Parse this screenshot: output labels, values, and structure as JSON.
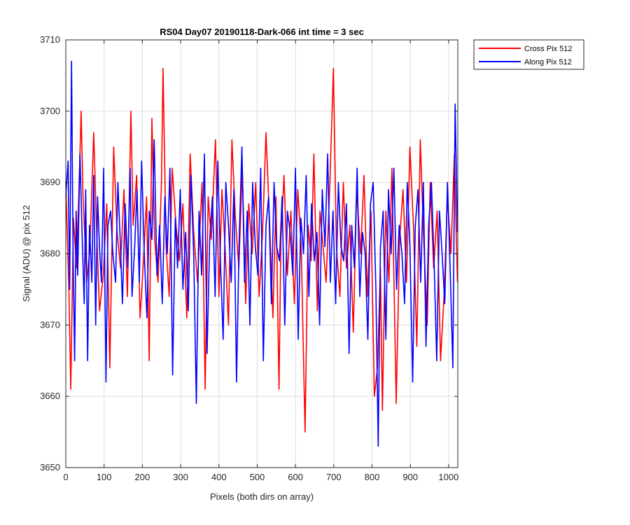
{
  "chart_data": {
    "type": "line",
    "title": "RS04 Day07 20190118-Dark-066 int time = 3 sec",
    "xlabel": "Pixels (both dirs on array)",
    "ylabel": "Signal (ADU) @ pix 512",
    "xlim": [
      0,
      1024
    ],
    "ylim": [
      3650,
      3710
    ],
    "xticks": [
      0,
      100,
      200,
      300,
      400,
      500,
      600,
      700,
      800,
      900,
      1000
    ],
    "yticks": [
      3650,
      3660,
      3670,
      3680,
      3690,
      3700,
      3710
    ],
    "grid": true,
    "legend_position": "outside-top-right",
    "series": [
      {
        "name": "Cross Pix 512",
        "color": "#ff0000",
        "x": [
          0,
          8,
          13,
          20,
          28,
          36,
          40,
          45,
          55,
          63,
          73,
          80,
          88,
          98,
          107,
          115,
          125,
          134,
          143,
          152,
          161,
          170,
          176,
          185,
          194,
          203,
          211,
          218,
          225,
          232,
          241,
          250,
          254,
          262,
          270,
          278,
          288,
          297,
          306,
          316,
          325,
          334,
          344,
          356,
          364,
          372,
          380,
          391,
          400,
          408,
          416,
          425,
          434,
          443,
          452,
          461,
          470,
          478,
          487,
          496,
          505,
          514,
          523,
          532,
          541,
          549,
          557,
          562,
          570,
          579,
          588,
          597,
          606,
          615,
          625,
          633,
          641,
          648,
          657,
          664,
          672,
          680,
          690,
          699,
          707,
          716,
          725,
          733,
          742,
          751,
          760,
          770,
          779,
          788,
          797,
          806,
          814,
          822,
          827,
          836,
          844,
          852,
          863,
          872,
          881,
          890,
          899,
          908,
          917,
          926,
          935,
          944,
          952,
          961,
          970,
          979,
          988,
          997,
          1006,
          1015,
          1023
        ],
        "values": [
          3690,
          3675,
          3661,
          3685,
          3678,
          3692,
          3700,
          3688,
          3676,
          3681,
          3697,
          3684,
          3672,
          3677,
          3687,
          3664,
          3695,
          3683,
          3678,
          3689,
          3674,
          3700,
          3684,
          3691,
          3671,
          3679,
          3688,
          3665,
          3699,
          3682,
          3676,
          3690,
          3706,
          3681,
          3674,
          3692,
          3684,
          3679,
          3687,
          3671,
          3694,
          3683,
          3676,
          3690,
          3661,
          3688,
          3682,
          3696,
          3674,
          3689,
          3681,
          3670,
          3696,
          3685,
          3678,
          3692,
          3673,
          3687,
          3680,
          3690,
          3674,
          3683,
          3697,
          3685,
          3671,
          3688,
          3661,
          3682,
          3691,
          3677,
          3686,
          3673,
          3689,
          3681,
          3655,
          3684,
          3679,
          3694,
          3672,
          3686,
          3681,
          3676,
          3690,
          3706,
          3681,
          3674,
          3690,
          3678,
          3684,
          3669,
          3689,
          3680,
          3691,
          3674,
          3686,
          3660,
          3664,
          3678,
          3658,
          3686,
          3676,
          3692,
          3659,
          3682,
          3689,
          3676,
          3695,
          3684,
          3667,
          3696,
          3682,
          3670,
          3690,
          3678,
          3686,
          3665,
          3674,
          3688,
          3680,
          3694,
          3676
        ]
      },
      {
        "name": "Along Pix 512",
        "color": "#0000ff",
        "x": [
          0,
          6,
          10,
          15,
          19,
          23,
          27,
          31,
          37,
          43,
          48,
          52,
          57,
          62,
          68,
          73,
          78,
          83,
          88,
          93,
          99,
          105,
          110,
          117,
          123,
          130,
          136,
          142,
          148,
          155,
          162,
          168,
          173,
          180,
          186,
          192,
          198,
          205,
          212,
          218,
          225,
          231,
          238,
          245,
          252,
          259,
          265,
          272,
          279,
          286,
          292,
          299,
          306,
          313,
          320,
          327,
          334,
          341,
          348,
          355,
          362,
          369,
          376,
          383,
          390,
          397,
          404,
          411,
          418,
          425,
          432,
          439,
          446,
          453,
          460,
          467,
          474,
          481,
          488,
          495,
          502,
          509,
          516,
          523,
          530,
          537,
          544,
          551,
          558,
          565,
          572,
          579,
          586,
          593,
          600,
          607,
          614,
          621,
          628,
          635,
          642,
          649,
          656,
          663,
          670,
          677,
          684,
          691,
          698,
          705,
          712,
          719,
          726,
          733,
          740,
          747,
          754,
          761,
          768,
          775,
          782,
          789,
          796,
          803,
          810,
          816,
          822,
          829,
          836,
          843,
          850,
          857,
          864,
          871,
          878,
          885,
          892,
          899,
          906,
          913,
          920,
          927,
          934,
          941,
          948,
          955,
          962,
          969,
          976,
          983,
          990,
          997,
          1004,
          1011,
          1017,
          1023
        ],
        "values": [
          3688,
          3693,
          3675,
          3707,
          3680,
          3665,
          3686,
          3677,
          3694,
          3682,
          3673,
          3689,
          3665,
          3684,
          3676,
          3691,
          3670,
          3688,
          3681,
          3676,
          3692,
          3662,
          3684,
          3686,
          3680,
          3676,
          3690,
          3682,
          3673,
          3687,
          3678,
          3692,
          3674,
          3681,
          3689,
          3676,
          3693,
          3680,
          3671,
          3686,
          3682,
          3696,
          3677,
          3684,
          3673,
          3688,
          3680,
          3692,
          3663,
          3685,
          3678,
          3689,
          3675,
          3683,
          3672,
          3691,
          3680,
          3659,
          3686,
          3677,
          3694,
          3666,
          3682,
          3688,
          3674,
          3693,
          3679,
          3668,
          3690,
          3684,
          3676,
          3689,
          3662,
          3682,
          3695,
          3676,
          3686,
          3670,
          3690,
          3681,
          3677,
          3692,
          3665,
          3684,
          3688,
          3673,
          3690,
          3681,
          3679,
          3688,
          3670,
          3686,
          3683,
          3677,
          3692,
          3668,
          3685,
          3680,
          3691,
          3674,
          3687,
          3679,
          3683,
          3670,
          3689,
          3681,
          3694,
          3676,
          3686,
          3673,
          3690,
          3681,
          3679,
          3687,
          3666,
          3684,
          3678,
          3692,
          3674,
          3683,
          3680,
          3668,
          3687,
          3690,
          3675,
          3653,
          3681,
          3686,
          3668,
          3689,
          3680,
          3692,
          3675,
          3684,
          3680,
          3673,
          3690,
          3681,
          3662,
          3684,
          3689,
          3676,
          3690,
          3667,
          3684,
          3690,
          3679,
          3665,
          3686,
          3680,
          3673,
          3690,
          3678,
          3664,
          3701,
          3683
        ]
      }
    ]
  }
}
